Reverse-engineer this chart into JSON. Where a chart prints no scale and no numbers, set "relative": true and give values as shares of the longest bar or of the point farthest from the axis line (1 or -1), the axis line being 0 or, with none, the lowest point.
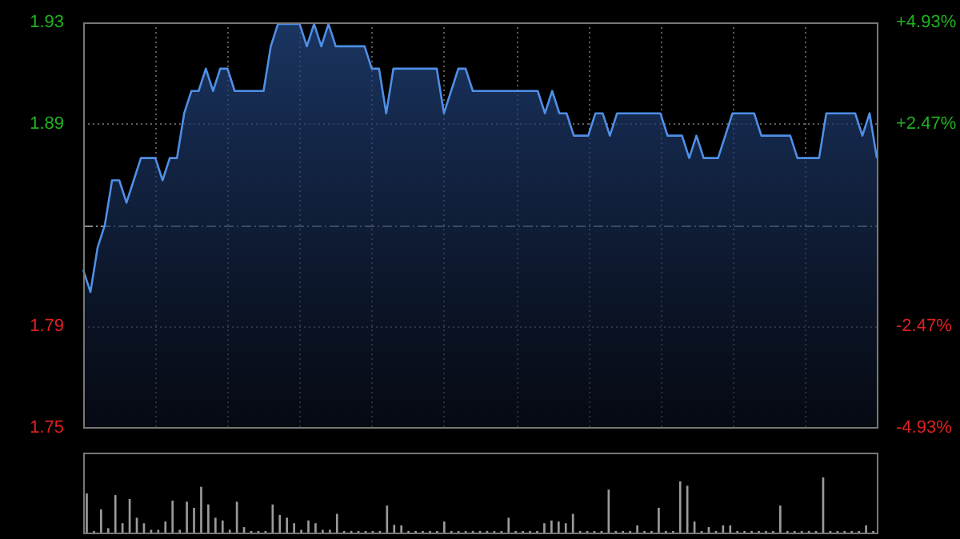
{
  "chart_data": [
    {
      "type": "area",
      "categories": [
        null,
        null,
        null,
        null,
        null,
        null,
        null,
        null,
        null,
        null,
        null,
        null,
        null,
        null,
        null,
        null,
        null,
        null,
        null,
        null,
        null,
        null,
        null,
        null,
        null,
        null,
        null,
        null,
        null,
        null,
        null,
        null,
        null,
        null,
        null,
        null,
        null,
        null,
        null,
        null,
        null,
        null,
        null,
        null,
        null,
        null,
        null,
        null,
        null,
        null,
        null,
        null,
        null,
        null,
        null,
        null,
        null,
        null,
        null,
        null,
        null,
        null,
        null,
        null,
        null,
        null,
        null,
        null,
        null,
        null,
        null,
        null,
        null,
        null,
        null,
        null,
        null,
        null,
        null,
        null,
        null,
        null,
        null,
        null,
        null,
        null,
        null,
        null,
        null,
        null,
        null,
        null,
        null,
        null,
        null,
        null,
        null,
        null,
        null,
        null,
        null,
        null,
        null,
        null,
        null,
        null,
        null,
        null,
        null,
        null,
        null
      ],
      "series": [
        {
          "color": "#4f8fe6",
          "values": [
            1.82,
            1.81,
            1.83,
            1.84,
            1.86,
            1.86,
            1.85,
            1.86,
            1.87,
            1.87,
            1.87,
            1.86,
            1.87,
            1.87,
            1.89,
            1.9,
            1.9,
            1.91,
            1.9,
            1.91,
            1.91,
            1.9,
            1.9,
            1.9,
            1.9,
            1.9,
            1.92,
            1.93,
            1.93,
            1.93,
            1.93,
            1.92,
            1.93,
            1.92,
            1.93,
            1.92,
            1.92,
            1.92,
            1.92,
            1.92,
            1.91,
            1.91,
            1.89,
            1.91,
            1.91,
            1.91,
            1.91,
            1.91,
            1.91,
            1.91,
            1.89,
            1.9,
            1.91,
            1.91,
            1.9,
            1.9,
            1.9,
            1.9,
            1.9,
            1.9,
            1.9,
            1.9,
            1.9,
            1.9,
            1.89,
            1.9,
            1.89,
            1.89,
            1.88,
            1.88,
            1.88,
            1.89,
            1.89,
            1.88,
            1.89,
            1.89,
            1.89,
            1.89,
            1.89,
            1.89,
            1.89,
            1.88,
            1.88,
            1.88,
            1.87,
            1.88,
            1.87,
            1.87,
            1.87,
            1.88,
            1.89,
            1.89,
            1.89,
            1.89,
            1.88,
            1.88,
            1.88,
            1.88,
            1.88,
            1.87,
            1.87,
            1.87,
            1.87,
            1.89,
            1.89,
            1.89,
            1.89,
            1.89,
            1.88,
            1.89,
            1.87
          ]
        }
      ],
      "ylim": [
        1.7493,
        1.9307
      ],
      "yticks": [
        {
          "value": 1.7493,
          "label": "1.75"
        },
        {
          "value": 1.7946,
          "label": "1.79"
        },
        {
          "value": 1.8853,
          "label": "1.89"
        },
        {
          "value": 1.9307,
          "label": "1.93"
        }
      ],
      "y2lim": [
        -4.93,
        4.93
      ],
      "y2ticks": [
        {
          "value": -4.93,
          "label": "-4.93%"
        },
        {
          "value": -2.47,
          "label": "-2.47%"
        },
        {
          "value": 2.47,
          "label": "+2.47%"
        },
        {
          "value": 4.93,
          "label": "+4.93%"
        }
      ],
      "grid": true,
      "ref_lines": [
        {
          "axis": "y",
          "value": 1.84,
          "line_style": "dashed"
        }
      ]
    },
    {
      "type": "bar",
      "relative": true,
      "color": "#9a9a9a",
      "categories": [
        null,
        null,
        null,
        null,
        null,
        null,
        null,
        null,
        null,
        null,
        null,
        null,
        null,
        null,
        null,
        null,
        null,
        null,
        null,
        null,
        null,
        null,
        null,
        null,
        null,
        null,
        null,
        null,
        null,
        null,
        null,
        null,
        null,
        null,
        null,
        null,
        null,
        null,
        null,
        null,
        null,
        null,
        null,
        null,
        null,
        null,
        null,
        null,
        null,
        null,
        null,
        null,
        null,
        null,
        null,
        null,
        null,
        null,
        null,
        null,
        null,
        null,
        null,
        null,
        null,
        null,
        null,
        null,
        null,
        null,
        null,
        null,
        null,
        null,
        null,
        null,
        null,
        null,
        null,
        null,
        null,
        null,
        null,
        null,
        null,
        null,
        null,
        null,
        null,
        null,
        null,
        null,
        null,
        null,
        null,
        null,
        null,
        null,
        null,
        null,
        null,
        null,
        null,
        null,
        null,
        null,
        null,
        null,
        null,
        null,
        null
      ],
      "values": [
        0.71,
        0.03,
        0.42,
        0.08,
        0.68,
        0.17,
        0.61,
        0.27,
        0.17,
        0.05,
        0.05,
        0.2,
        0.58,
        0.05,
        0.56,
        0.45,
        0.83,
        0.51,
        0.27,
        0.22,
        0.05,
        0.56,
        0.1,
        0.03,
        0.03,
        0.03,
        0.51,
        0.32,
        0.27,
        0.17,
        0.05,
        0.22,
        0.17,
        0.05,
        0.05,
        0.34,
        0.03,
        0.03,
        0.03,
        0.03,
        0.03,
        0.03,
        0.49,
        0.14,
        0.13,
        0.03,
        0.03,
        0.03,
        0.03,
        0.03,
        0.2,
        0.03,
        0.03,
        0.03,
        0.03,
        0.03,
        0.03,
        0.03,
        0.03,
        0.27,
        0.03,
        0.03,
        0.03,
        0.03,
        0.17,
        0.22,
        0.2,
        0.17,
        0.34,
        0.03,
        0.03,
        0.03,
        0.03,
        0.78,
        0.03,
        0.03,
        0.03,
        0.13,
        0.03,
        0.03,
        0.45,
        0.03,
        0.03,
        0.93,
        0.85,
        0.2,
        0.03,
        0.1,
        0.03,
        0.13,
        0.13,
        0.03,
        0.03,
        0.03,
        0.03,
        0.03,
        0.03,
        0.49,
        0.03,
        0.03,
        0.03,
        0.03,
        0.03,
        1,
        0.03,
        0.03,
        0.03,
        0.03,
        0.03,
        0.13,
        0.03
      ]
    }
  ]
}
